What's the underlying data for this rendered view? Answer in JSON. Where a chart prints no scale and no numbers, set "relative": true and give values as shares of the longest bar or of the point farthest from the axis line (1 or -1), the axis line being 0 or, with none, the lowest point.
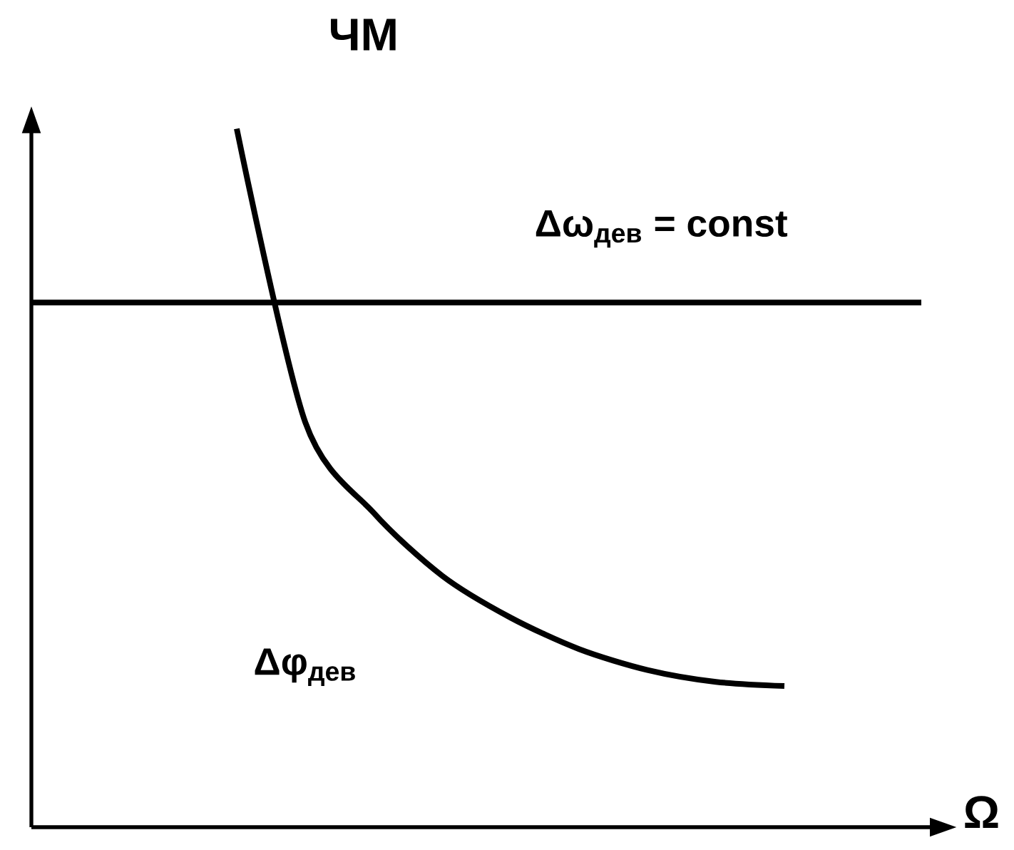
{
  "chart_data": {
    "type": "line",
    "title": "ЧМ",
    "xlabel": "Ω",
    "relative": true,
    "marker": "none",
    "line_style": "solid",
    "categories": [
      null,
      null,
      null,
      null,
      null,
      null,
      null,
      null,
      null,
      null,
      null,
      null,
      null,
      null
    ],
    "series": [
      {
        "name": "Δω$_{дев}$ = const",
        "color": "#000000",
        "values": [
          0.751,
          0.751,
          0.751,
          0.751,
          0.751,
          0.751,
          0.751,
          0.751,
          0.751,
          0.751,
          0.751,
          0.751,
          0.751,
          0.751
        ]
      },
      {
        "name": "Δφ$_{дев}$",
        "color": "#000000",
        "values": [
          null,
          null,
          null,
          1.0,
          0.58,
          0.45,
          0.36,
          0.3,
          0.255,
          0.225,
          0.208,
          0.202,
          null,
          null
        ]
      }
    ]
  }
}
